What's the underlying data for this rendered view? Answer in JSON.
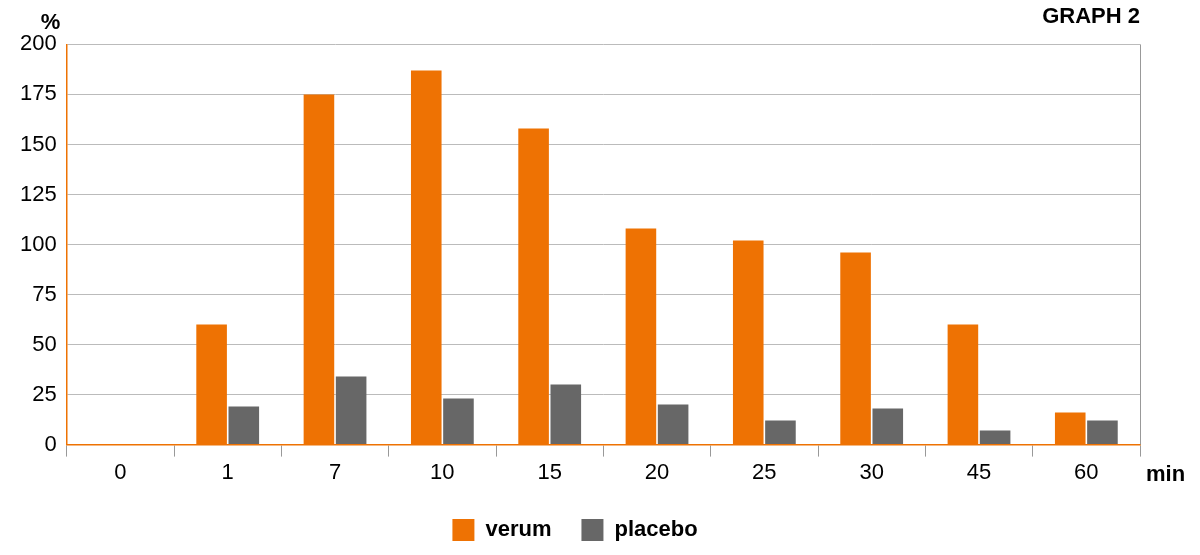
{
  "chart_data": {
    "type": "bar",
    "title": "GRAPH 2",
    "x_label": "min",
    "y_label": "%",
    "categories": [
      "0",
      "1",
      "7",
      "10",
      "15",
      "20",
      "25",
      "30",
      "45",
      "60"
    ],
    "series": [
      {
        "name": "verum",
        "color": "#ee7203",
        "values": [
          0,
          60,
          175,
          187,
          158,
          108,
          102,
          96,
          60,
          16
        ]
      },
      {
        "name": "placebo",
        "color": "#676767",
        "values": [
          0,
          19,
          34,
          23,
          30,
          20,
          12,
          18,
          7,
          12
        ]
      }
    ],
    "ylim": [
      0,
      200
    ],
    "yticks": [
      0,
      25,
      50,
      75,
      100,
      125,
      150,
      175,
      200
    ],
    "grid": true,
    "legend": "bottom"
  }
}
